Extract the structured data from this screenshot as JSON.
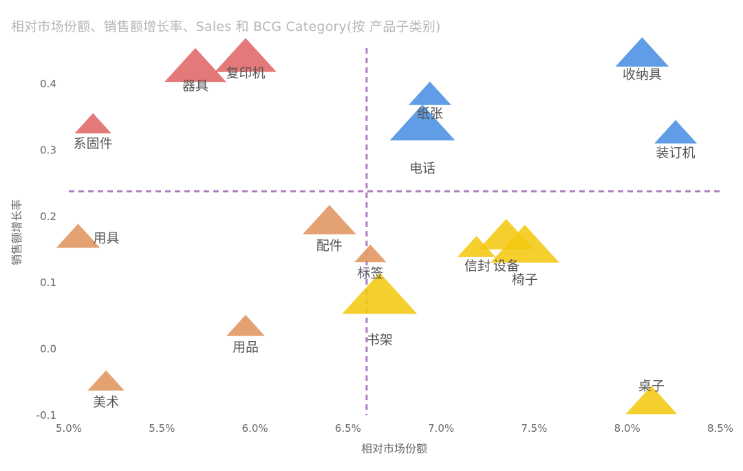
{
  "chart_data": {
    "type": "scatter",
    "title": "相对市场份额、销售额增长率、Sales 和 BCG Category(按 产品子类别)",
    "xlabel": "相对市场份额",
    "ylabel": "销售额增长率",
    "xlim": [
      0.05,
      0.085
    ],
    "ylim": [
      -0.1,
      0.45
    ],
    "x_ticks": [
      0.05,
      0.055,
      0.06,
      0.065,
      0.07,
      0.075,
      0.08,
      0.085
    ],
    "x_tick_labels": [
      "5.0%",
      "5.5%",
      "6.0%",
      "6.5%",
      "7.0%",
      "7.5%",
      "8.0%",
      "8.5%"
    ],
    "y_ticks": [
      -0.1,
      0.0,
      0.1,
      0.2,
      0.3,
      0.4
    ],
    "y_tick_labels": [
      "-0.1",
      "0.0",
      "0.1",
      "0.2",
      "0.3",
      "0.4"
    ],
    "grid": false,
    "reference_lines": {
      "x": 0.066,
      "y": 0.237,
      "color": "#b07cc6",
      "style": "dashed"
    },
    "marker": "triangle",
    "colors": {
      "red": "#e06666",
      "blue": "#4a90e2",
      "orange": "#e09560",
      "yellow": "#f2c811"
    },
    "points": [
      {
        "label": "器具",
        "x": 0.0568,
        "y": 0.425,
        "size": 3,
        "color": "red"
      },
      {
        "label": "复印机",
        "x": 0.0595,
        "y": 0.44,
        "size": 3,
        "color": "red"
      },
      {
        "label": "系固件",
        "x": 0.0513,
        "y": 0.338,
        "size": 0.6,
        "color": "red"
      },
      {
        "label": "纸张",
        "x": 0.0694,
        "y": 0.383,
        "size": 1,
        "color": "blue"
      },
      {
        "label": "电话",
        "x": 0.069,
        "y": 0.338,
        "size": 3.5,
        "color": "blue"
      },
      {
        "label": "收纳具",
        "x": 0.0808,
        "y": 0.445,
        "size": 2,
        "color": "blue"
      },
      {
        "label": "装订机",
        "x": 0.0826,
        "y": 0.325,
        "size": 1,
        "color": "blue"
      },
      {
        "label": "用具",
        "x": 0.0505,
        "y": 0.168,
        "size": 1.1,
        "color": "orange"
      },
      {
        "label": "配件",
        "x": 0.064,
        "y": 0.192,
        "size": 2,
        "color": "orange"
      },
      {
        "label": "标签",
        "x": 0.0662,
        "y": 0.142,
        "size": 0.35,
        "color": "orange"
      },
      {
        "label": "用品",
        "x": 0.0595,
        "y": 0.033,
        "size": 0.7,
        "color": "orange"
      },
      {
        "label": "美术",
        "x": 0.052,
        "y": -0.05,
        "size": 0.6,
        "color": "orange"
      },
      {
        "label": "信封",
        "x": 0.0719,
        "y": 0.152,
        "size": 0.7,
        "color": "yellow"
      },
      {
        "label": "设备",
        "x": 0.0735,
        "y": 0.17,
        "size": 2.2,
        "color": "yellow"
      },
      {
        "label": "椅子",
        "x": 0.0745,
        "y": 0.155,
        "size": 4,
        "color": "yellow"
      },
      {
        "label": "书架",
        "x": 0.0667,
        "y": 0.08,
        "size": 5,
        "color": "yellow"
      },
      {
        "label": "桌子",
        "x": 0.0813,
        "y": -0.08,
        "size": 1.8,
        "color": "yellow"
      }
    ]
  }
}
